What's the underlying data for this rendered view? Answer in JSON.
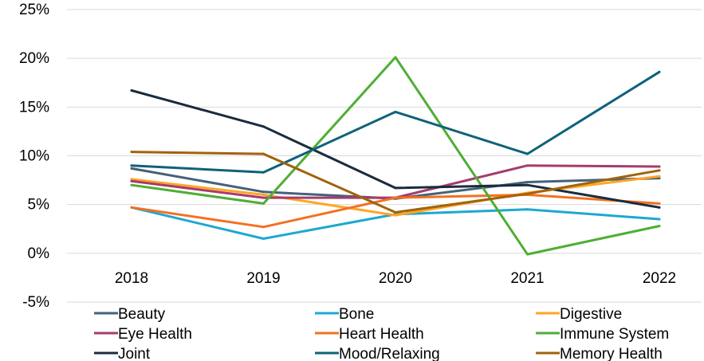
{
  "chart_data": {
    "type": "line",
    "x": [
      "2018",
      "2019",
      "2020",
      "2021",
      "2022"
    ],
    "ylim": [
      -5,
      25
    ],
    "yticks": [
      -5,
      0,
      5,
      10,
      15,
      20,
      25
    ],
    "ytick_labels": [
      "-5%",
      "0%",
      "5%",
      "10%",
      "15%",
      "20%",
      "25%"
    ],
    "grid": "horizontal",
    "legend_position": "bottom",
    "series": [
      {
        "name": "Beauty",
        "color": "#44617b",
        "values": [
          8.7,
          6.3,
          5.6,
          7.3,
          7.7
        ]
      },
      {
        "name": "Bone",
        "color": "#1ea8d0",
        "values": [
          4.7,
          1.5,
          4.0,
          4.5,
          3.5
        ]
      },
      {
        "name": "Digestive",
        "color": "#ffa526",
        "values": [
          7.6,
          6.0,
          3.9,
          6.2,
          7.9
        ]
      },
      {
        "name": "Eye Health",
        "color": "#a53c6c",
        "values": [
          7.4,
          5.7,
          5.7,
          9.0,
          8.9
        ]
      },
      {
        "name": "Heart Health",
        "color": "#f4701f",
        "values": [
          4.7,
          2.7,
          5.7,
          6.0,
          5.1
        ]
      },
      {
        "name": "Immune System",
        "color": "#4eae34",
        "values": [
          7.0,
          5.1,
          20.1,
          -0.1,
          2.8
        ]
      },
      {
        "name": "Joint",
        "color": "#1a2c3e",
        "values": [
          16.7,
          13.0,
          6.7,
          7.0,
          4.7
        ]
      },
      {
        "name": "Mood/Relaxing",
        "color": "#0f6279",
        "values": [
          9.0,
          8.3,
          14.5,
          10.2,
          18.6
        ]
      },
      {
        "name": "Memory Health",
        "color": "#a0630d",
        "values": [
          10.4,
          10.2,
          4.2,
          6.1,
          8.5
        ]
      }
    ]
  }
}
